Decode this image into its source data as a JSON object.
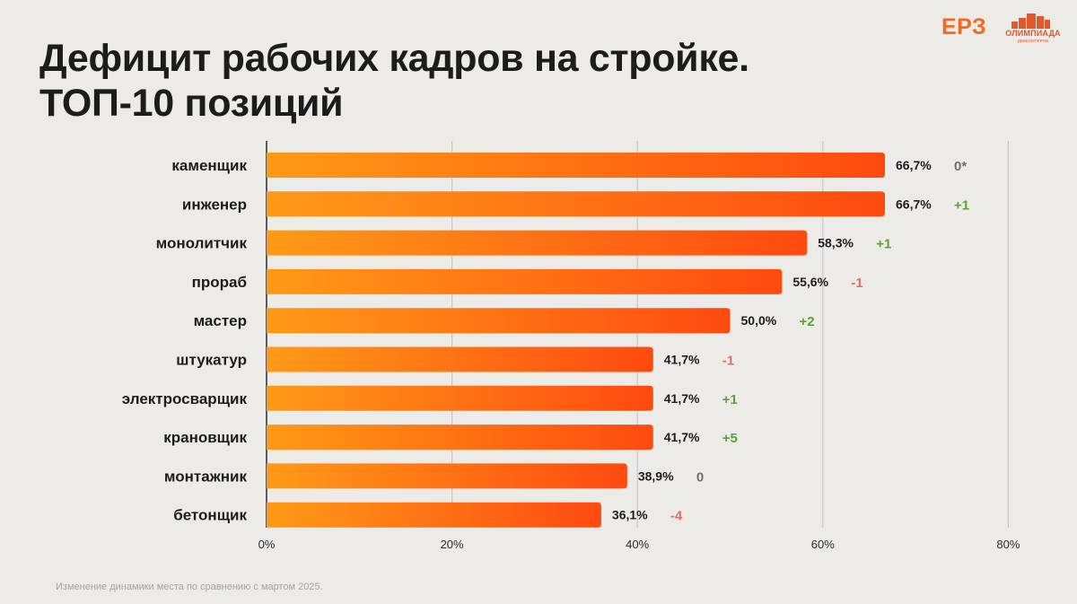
{
  "header": {
    "title_line1": "Дефицит рабочих кадров на стройке.",
    "title_line2": "ТОП-10 позиций"
  },
  "logos": {
    "erz": "ЕРЗ",
    "olympiad_name": "ОЛИМПИАДА",
    "olympiad_sub": "ДЕВЕЛОПЕРОВ"
  },
  "footnote": "Изменение динамики места по сравнению с мартом 2025.",
  "colors": {
    "bar_gradient_start": "#ff9a17",
    "bar_gradient_end": "#ff4a10",
    "positive_change": "#5aa13a",
    "negative_change": "#e56a5f",
    "neutral_change": "#6e6e6e",
    "grid": "#c6c6c6"
  },
  "chart_data": {
    "type": "bar",
    "orientation": "horizontal",
    "categories": [
      "каменщик",
      "инженер",
      "монолитчик",
      "прораб",
      "мастер",
      "штукатур",
      "электросварщик",
      "крановщик",
      "монтажник",
      "бетонщик"
    ],
    "values": [
      66.7,
      66.7,
      58.3,
      55.6,
      50.0,
      41.7,
      41.7,
      41.7,
      38.9,
      36.1
    ],
    "value_labels": [
      "66,7%",
      "66,7%",
      "58,3%",
      "55,6%",
      "50,0%",
      "41,7%",
      "41,7%",
      "41,7%",
      "38,9%",
      "36,1%"
    ],
    "rank_change": [
      "0*",
      "+1",
      "+1",
      "-1",
      "+2",
      "-1",
      "+1",
      "+5",
      "0",
      "-4"
    ],
    "xlim": [
      0,
      80
    ],
    "x_ticks": [
      0,
      20,
      40,
      60,
      80
    ],
    "x_tick_labels": [
      "0%",
      "20%",
      "40%",
      "60%",
      "80%"
    ],
    "grid": true,
    "title": "Дефицит рабочих кадров на стройке. ТОП-10 позиций"
  }
}
